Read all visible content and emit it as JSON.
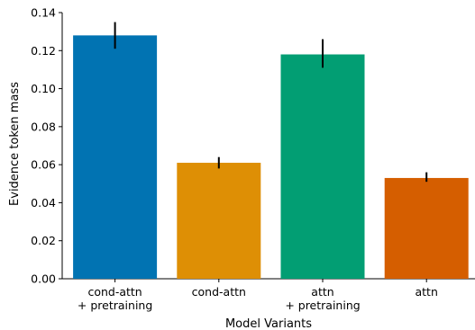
{
  "chart_data": {
    "type": "bar",
    "title": "",
    "xlabel": "Model Variants",
    "ylabel": "Evidence token mass",
    "ylim": [
      0,
      0.14
    ],
    "yticks": [
      0.0,
      0.02,
      0.04,
      0.06,
      0.08,
      0.1,
      0.12,
      0.14
    ],
    "ytick_labels": [
      "0.00",
      "0.02",
      "0.04",
      "0.06",
      "0.08",
      "0.10",
      "0.12",
      "0.14"
    ],
    "grid": false,
    "categories": [
      [
        "cond-attn",
        "+ pretraining"
      ],
      [
        "cond-attn"
      ],
      [
        "attn",
        "+ pretraining"
      ],
      [
        "attn"
      ]
    ],
    "values": [
      0.128,
      0.061,
      0.118,
      0.053
    ],
    "error_low": [
      0.121,
      0.058,
      0.111,
      0.051
    ],
    "error_high": [
      0.135,
      0.064,
      0.126,
      0.056
    ],
    "colors": [
      "#0173b2",
      "#de8f05",
      "#029e73",
      "#d55e00"
    ]
  }
}
